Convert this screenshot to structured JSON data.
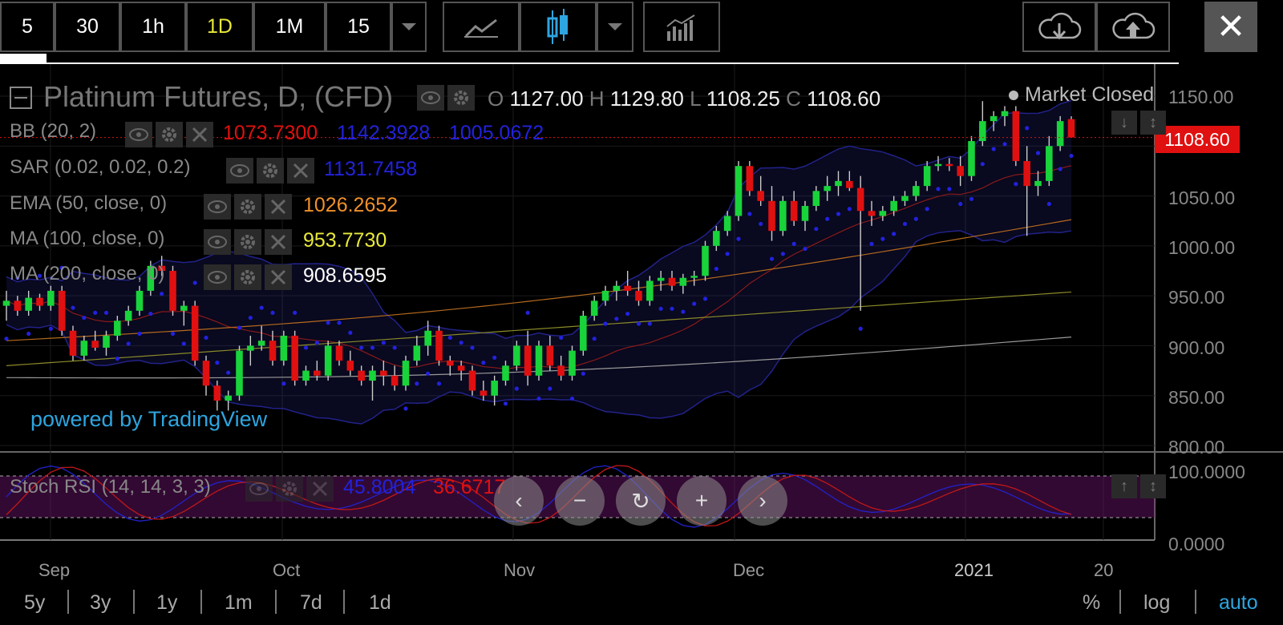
{
  "toolbar": {
    "intervals": [
      "5",
      "30",
      "1h",
      "1D",
      "1M",
      "15"
    ],
    "active_interval": "1D"
  },
  "close_label": "✕",
  "legend": {
    "title": "Platinum Futures, D, (CFD)",
    "ohlc": {
      "o_label": "O",
      "o": "1127.00",
      "h_label": "H",
      "h": "1129.80",
      "l_label": "L",
      "l": "1108.25",
      "c_label": "C",
      "c": "1108.60"
    },
    "market_status": "Market Closed",
    "indicators": [
      {
        "name": "BB (20, 2)",
        "values": [
          "1073.7300",
          "1142.3928",
          "1005.0672"
        ],
        "colors": [
          "#e01010",
          "#2222dd",
          "#2222dd"
        ]
      },
      {
        "name": "SAR (0.02, 0.02, 0.2)",
        "values": [
          "1131.7458"
        ],
        "colors": [
          "#2222dd"
        ]
      },
      {
        "name": "EMA (50, close, 0)",
        "values": [
          "1026.2652"
        ],
        "colors": [
          "#f0902a"
        ]
      },
      {
        "name": "MA (100, close, 0)",
        "values": [
          "953.7730"
        ],
        "colors": [
          "#e9e93a"
        ]
      },
      {
        "name": "MA (200, close, 0)",
        "values": [
          "908.6595"
        ],
        "colors": [
          "#ffffff"
        ]
      }
    ],
    "stoch": {
      "name": "Stoch RSI (14, 14, 3, 3)",
      "values": [
        "45.8004",
        "36.6717"
      ],
      "colors": [
        "#2222dd",
        "#e01010"
      ]
    }
  },
  "powered_by": "powered by TradingView",
  "price_axis": {
    "labels": [
      "1150.00",
      "1050.00",
      "1000.00",
      "950.00",
      "900.00",
      "850.00",
      "800.00"
    ],
    "last_price": "1108.60"
  },
  "stoch_axis": {
    "labels": [
      "100.0000",
      "0.0000"
    ]
  },
  "time_axis": {
    "labels": [
      "Sep",
      "Oct",
      "Nov",
      "Dec",
      "2021",
      "20"
    ]
  },
  "navigation": {
    "buttons": [
      "‹",
      "−",
      "↻",
      "+",
      "›"
    ]
  },
  "ranges": [
    "5y",
    "3y",
    "1y",
    "1m",
    "7d",
    "1d"
  ],
  "scale_options": [
    "%",
    "log",
    "auto"
  ],
  "colors": {
    "up": "#19d33a",
    "down": "#e01010",
    "accent_active": "#e9e93a",
    "auto": "#2ea5e0"
  },
  "chart_data": {
    "type": "candlestick",
    "title": "Platinum Futures, D, (CFD)",
    "ylim": [
      800,
      1165
    ],
    "x_ticks": [
      "Sep",
      "Oct",
      "Nov",
      "Dec",
      "2021",
      "20"
    ],
    "candles": [
      [
        940,
        955,
        925,
        945
      ],
      [
        945,
        950,
        930,
        935
      ],
      [
        935,
        955,
        930,
        948
      ],
      [
        948,
        952,
        935,
        940
      ],
      [
        940,
        960,
        935,
        955
      ],
      [
        955,
        960,
        910,
        915
      ],
      [
        915,
        920,
        885,
        890
      ],
      [
        890,
        910,
        885,
        905
      ],
      [
        905,
        915,
        895,
        898
      ],
      [
        898,
        915,
        890,
        910
      ],
      [
        910,
        930,
        905,
        925
      ],
      [
        925,
        940,
        920,
        935
      ],
      [
        935,
        960,
        930,
        955
      ],
      [
        955,
        985,
        950,
        980
      ],
      [
        980,
        990,
        970,
        975
      ],
      [
        975,
        980,
        930,
        935
      ],
      [
        935,
        945,
        920,
        940
      ],
      [
        940,
        945,
        880,
        885
      ],
      [
        885,
        890,
        850,
        860
      ],
      [
        860,
        865,
        835,
        845
      ],
      [
        845,
        855,
        835,
        850
      ],
      [
        850,
        900,
        845,
        895
      ],
      [
        895,
        910,
        880,
        900
      ],
      [
        900,
        920,
        895,
        905
      ],
      [
        905,
        915,
        880,
        885
      ],
      [
        885,
        915,
        880,
        910
      ],
      [
        910,
        915,
        860,
        865
      ],
      [
        865,
        880,
        860,
        875
      ],
      [
        875,
        885,
        865,
        870
      ],
      [
        870,
        905,
        865,
        900
      ],
      [
        900,
        905,
        880,
        885
      ],
      [
        885,
        895,
        870,
        875
      ],
      [
        875,
        880,
        860,
        865
      ],
      [
        865,
        880,
        845,
        875
      ],
      [
        875,
        885,
        860,
        870
      ],
      [
        870,
        880,
        855,
        860
      ],
      [
        860,
        890,
        855,
        885
      ],
      [
        885,
        910,
        880,
        900
      ],
      [
        900,
        925,
        890,
        915
      ],
      [
        915,
        920,
        880,
        885
      ],
      [
        885,
        890,
        870,
        880
      ],
      [
        880,
        885,
        865,
        875
      ],
      [
        875,
        880,
        850,
        855
      ],
      [
        855,
        865,
        845,
        850
      ],
      [
        850,
        870,
        840,
        865
      ],
      [
        865,
        885,
        860,
        880
      ],
      [
        880,
        905,
        875,
        900
      ],
      [
        900,
        915,
        860,
        870
      ],
      [
        870,
        905,
        865,
        900
      ],
      [
        900,
        910,
        875,
        880
      ],
      [
        880,
        890,
        865,
        870
      ],
      [
        870,
        900,
        865,
        895
      ],
      [
        895,
        935,
        890,
        930
      ],
      [
        930,
        950,
        925,
        945
      ],
      [
        945,
        960,
        940,
        955
      ],
      [
        955,
        965,
        945,
        960
      ],
      [
        960,
        975,
        950,
        955
      ],
      [
        955,
        965,
        940,
        945
      ],
      [
        945,
        970,
        940,
        965
      ],
      [
        965,
        975,
        955,
        968
      ],
      [
        968,
        975,
        955,
        960
      ],
      [
        960,
        972,
        952,
        968
      ],
      [
        968,
        975,
        960,
        970
      ],
      [
        970,
        1005,
        965,
        1000
      ],
      [
        1000,
        1020,
        995,
        1015
      ],
      [
        1015,
        1035,
        1010,
        1030
      ],
      [
        1030,
        1085,
        1025,
        1080
      ],
      [
        1080,
        1085,
        1050,
        1055
      ],
      [
        1055,
        1070,
        1040,
        1045
      ],
      [
        1045,
        1060,
        1005,
        1015
      ],
      [
        1015,
        1050,
        1010,
        1045
      ],
      [
        1045,
        1055,
        1020,
        1025
      ],
      [
        1025,
        1045,
        1015,
        1040
      ],
      [
        1040,
        1060,
        1035,
        1055
      ],
      [
        1055,
        1070,
        1045,
        1060
      ],
      [
        1060,
        1075,
        1050,
        1065
      ],
      [
        1065,
        1075,
        1055,
        1058
      ],
      [
        1058,
        1070,
        935,
        1035
      ],
      [
        1035,
        1045,
        1020,
        1030
      ],
      [
        1030,
        1040,
        1025,
        1035
      ],
      [
        1035,
        1050,
        1030,
        1045
      ],
      [
        1045,
        1055,
        1040,
        1050
      ],
      [
        1050,
        1065,
        1045,
        1060
      ],
      [
        1060,
        1085,
        1055,
        1080
      ],
      [
        1080,
        1090,
        1075,
        1082
      ],
      [
        1082,
        1088,
        1075,
        1080
      ],
      [
        1080,
        1090,
        1060,
        1070
      ],
      [
        1070,
        1110,
        1065,
        1105
      ],
      [
        1105,
        1145,
        1100,
        1125
      ],
      [
        1125,
        1135,
        1115,
        1130
      ],
      [
        1130,
        1140,
        1120,
        1135
      ],
      [
        1135,
        1140,
        1080,
        1085
      ],
      [
        1085,
        1100,
        1010,
        1060
      ],
      [
        1060,
        1075,
        1050,
        1065
      ],
      [
        1065,
        1110,
        1060,
        1100
      ],
      [
        1100,
        1130,
        1095,
        1125
      ],
      [
        1127,
        1129.8,
        1108.25,
        1108.6
      ]
    ]
  }
}
